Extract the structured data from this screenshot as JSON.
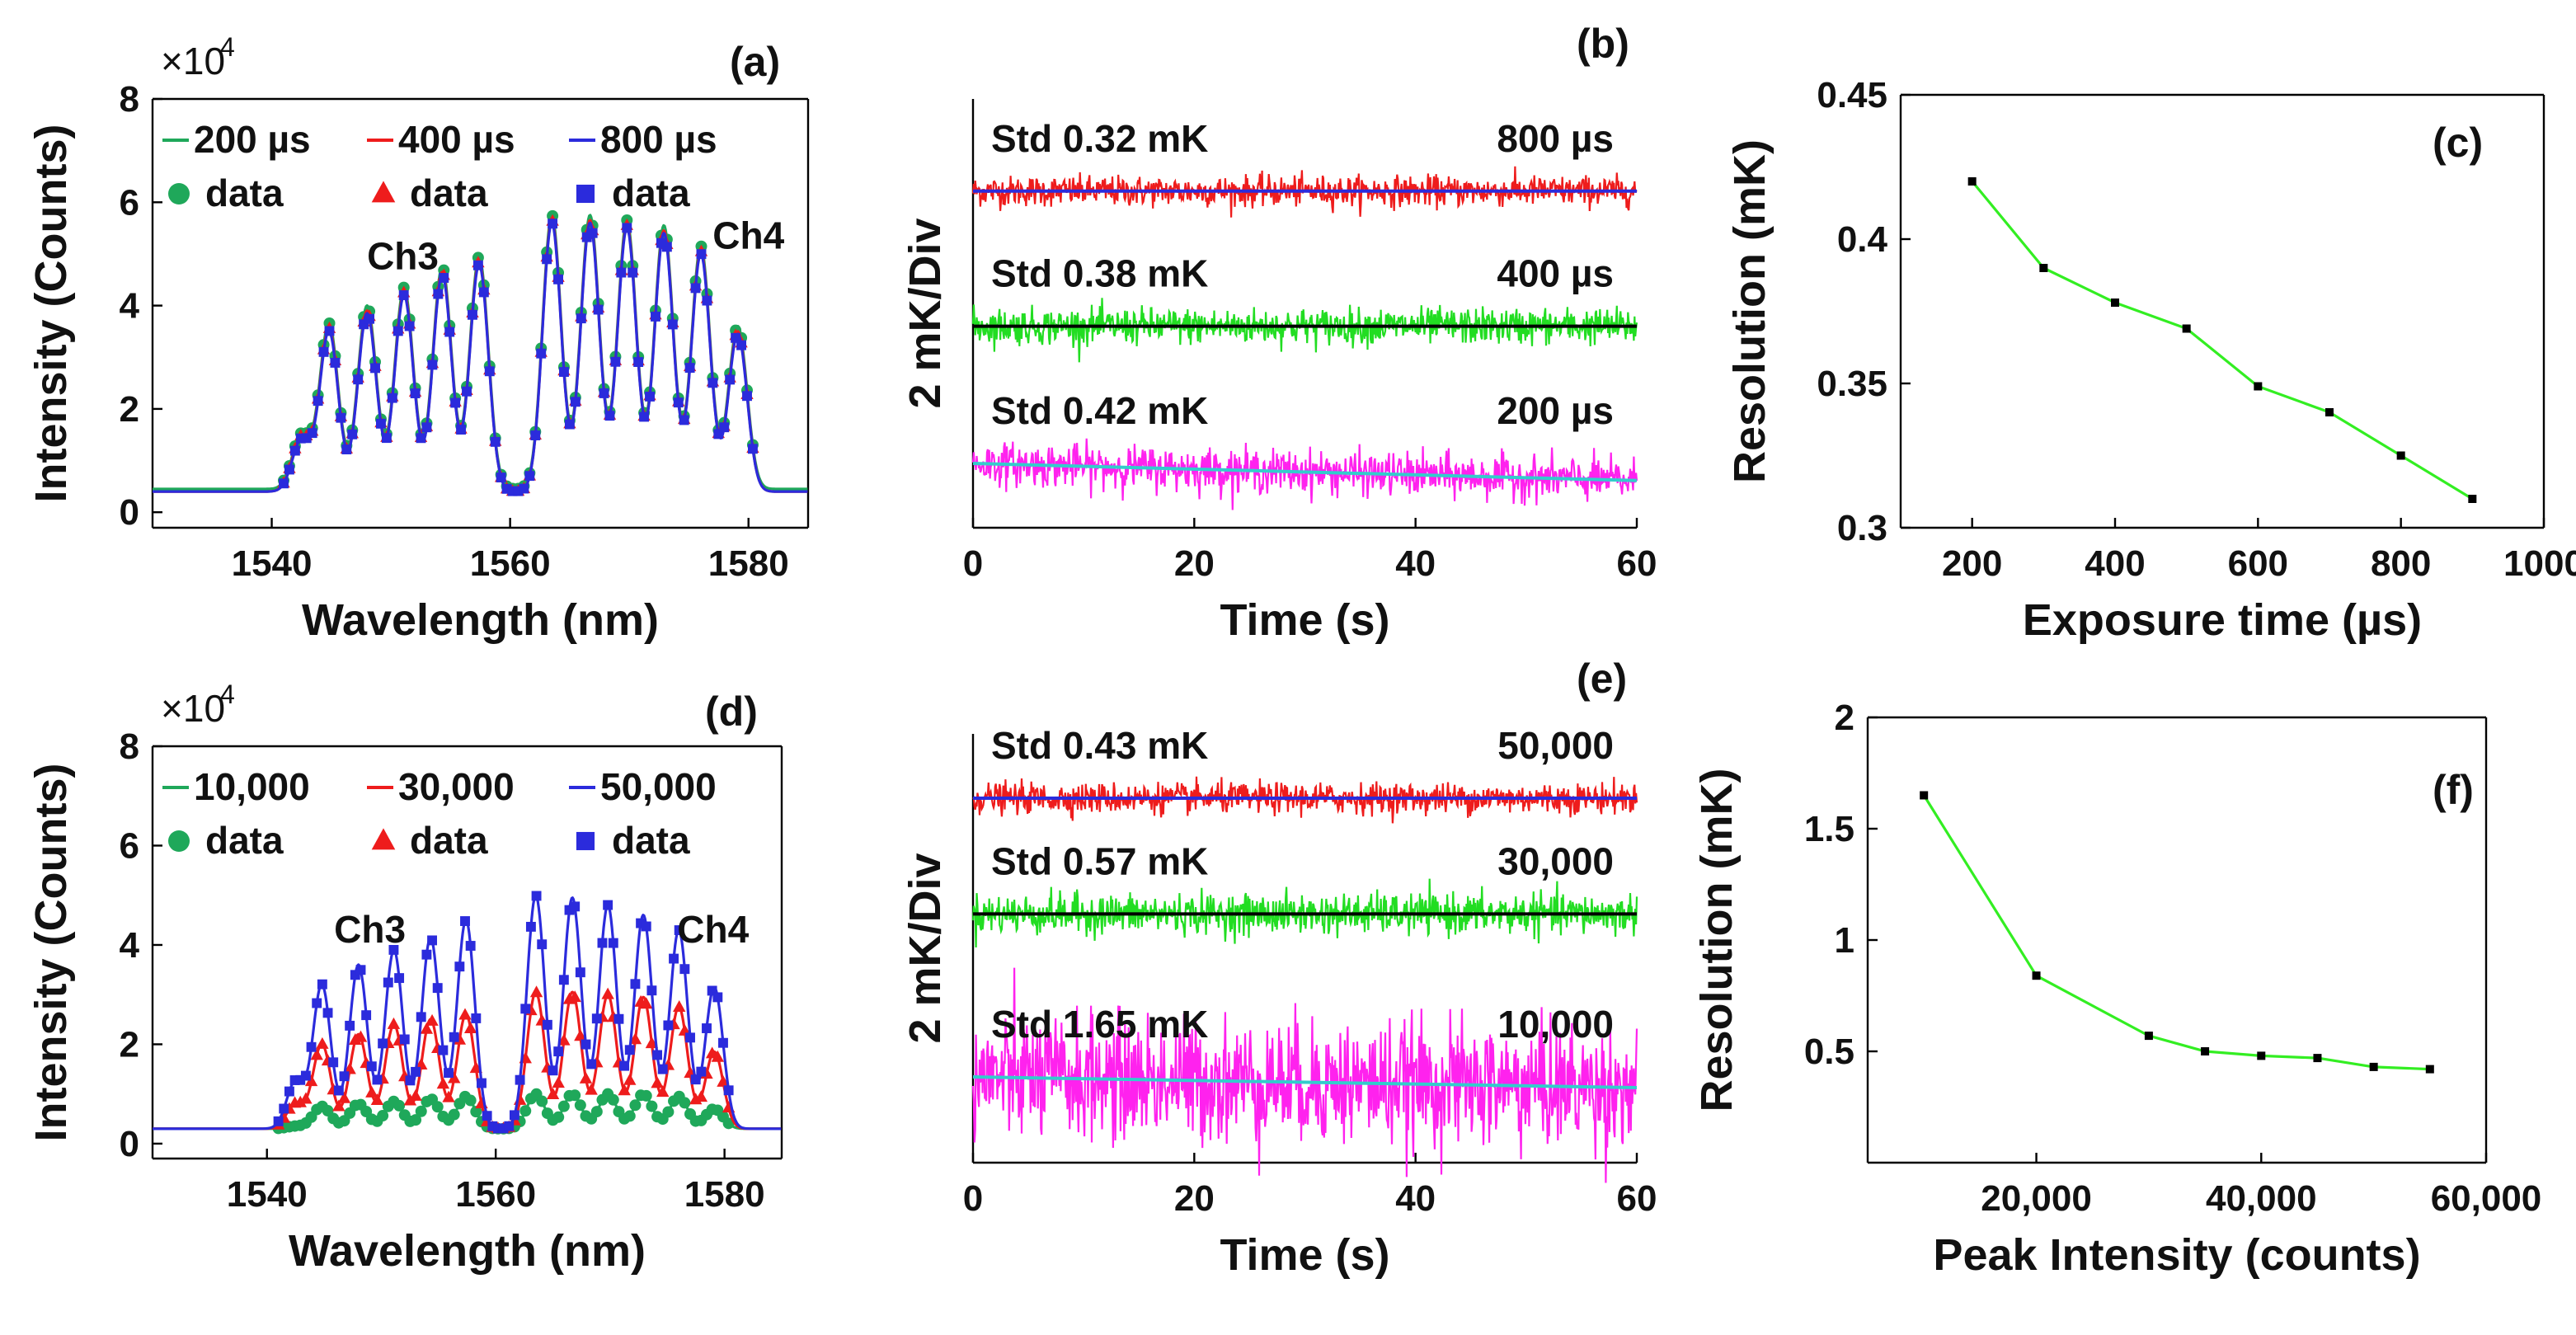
{
  "chart_data": [
    {
      "id": "a",
      "type": "line",
      "panel_label": "(a)",
      "xlabel": "Wavelength (nm)",
      "ylabel": "Intensity (Counts)",
      "multiplier_base": "×10",
      "multiplier_exp": "4",
      "xlim": [
        1530,
        1585
      ],
      "ylim": [
        -0.3,
        8
      ],
      "xticks": [
        1540,
        1560,
        1580
      ],
      "yticks": [
        0,
        2,
        4,
        6,
        8
      ],
      "channel_labels": [
        {
          "text": "Ch3",
          "x": 1551,
          "y": 4.7
        },
        {
          "text": "Ch4",
          "x": 1580,
          "y": 5.1
        }
      ],
      "legend": [
        {
          "label": "200 µs",
          "data_label": "data",
          "color": "#1fa85a",
          "marker": "circle"
        },
        {
          "label": "400 µs",
          "data_label": "data",
          "color": "#ee1c1c",
          "marker": "triangle"
        },
        {
          "label": "800 µs",
          "data_label": "data",
          "color": "#2b2bdc",
          "marker": "square"
        }
      ],
      "series": [
        {
          "name": "200 µs",
          "color": "#1fa85a",
          "marker": "circle",
          "baseline": 0.45,
          "peaks": [
            [
              1542.5,
              1.5
            ],
            [
              1544.8,
              3.65
            ],
            [
              1548.0,
              4.0
            ],
            [
              1551.1,
              4.35
            ],
            [
              1554.3,
              4.75
            ],
            [
              1557.4,
              4.95
            ],
            [
              1563.5,
              5.75
            ],
            [
              1566.7,
              5.75
            ],
            [
              1569.8,
              5.65
            ],
            [
              1572.9,
              5.55
            ],
            [
              1576.0,
              5.15
            ],
            [
              1579.1,
              3.6
            ]
          ]
        },
        {
          "name": "400 µs",
          "color": "#ee1c1c",
          "marker": "triangle",
          "baseline": 0.4,
          "peaks": [
            [
              1542.5,
              1.45
            ],
            [
              1544.8,
              3.55
            ],
            [
              1548.0,
              3.9
            ],
            [
              1551.1,
              4.25
            ],
            [
              1554.3,
              4.65
            ],
            [
              1557.4,
              4.85
            ],
            [
              1563.5,
              5.65
            ],
            [
              1566.7,
              5.65
            ],
            [
              1569.8,
              5.55
            ],
            [
              1572.9,
              5.45
            ],
            [
              1576.0,
              5.05
            ],
            [
              1579.1,
              3.5
            ]
          ]
        },
        {
          "name": "800 µs",
          "color": "#2b2bdc",
          "marker": "square",
          "baseline": 0.4,
          "peaks": [
            [
              1542.5,
              1.4
            ],
            [
              1544.8,
              3.5
            ],
            [
              1548.0,
              3.85
            ],
            [
              1551.1,
              4.2
            ],
            [
              1554.3,
              4.6
            ],
            [
              1557.4,
              4.8
            ],
            [
              1563.5,
              5.6
            ],
            [
              1566.7,
              5.6
            ],
            [
              1569.8,
              5.5
            ],
            [
              1572.9,
              5.4
            ],
            [
              1576.0,
              5.0
            ],
            [
              1579.1,
              3.45
            ]
          ]
        }
      ]
    },
    {
      "id": "b",
      "type": "line",
      "panel_label": "(b)",
      "xlabel": "Time (s)",
      "ylabel": "2 mK/Div",
      "xlim": [
        0,
        60
      ],
      "ylim": [
        0,
        10
      ],
      "xticks": [
        0,
        20,
        40,
        60
      ],
      "traces": [
        {
          "std_label": "Std 0.32 mK",
          "tag": "800 µs",
          "noise_color": "#ee1c1c",
          "fit_color": "#2b2bdc",
          "center": 7.85,
          "amplitude": 0.32,
          "slope": 0.0
        },
        {
          "std_label": "Std 0.38 mK",
          "tag": "400 µs",
          "noise_color": "#22dd22",
          "fit_color": "#000000",
          "center": 4.7,
          "amplitude": 0.38,
          "slope": 0.0
        },
        {
          "std_label": "Std 0.42 mK",
          "tag": "200 µs",
          "noise_color": "#ff22ee",
          "fit_color": "#33cccc",
          "center": 1.5,
          "amplitude": 0.45,
          "slope": -0.4
        }
      ]
    },
    {
      "id": "c",
      "type": "line",
      "panel_label": "(c)",
      "xlabel": "Exposure time (µs)",
      "ylabel": "Resolution (mK)",
      "xlim": [
        100,
        1000
      ],
      "ylim": [
        0.3,
        0.45
      ],
      "xticks": [
        200,
        400,
        600,
        800,
        1000
      ],
      "yticks": [
        0.3,
        0.35,
        0.4,
        0.45
      ],
      "ytick_labels": [
        "0.3",
        "0.35",
        "0.4",
        "0.45"
      ],
      "line_color": "#33ee22",
      "x": [
        200,
        300,
        400,
        500,
        600,
        700,
        800,
        900
      ],
      "y": [
        0.42,
        0.39,
        0.378,
        0.369,
        0.349,
        0.34,
        0.325,
        0.31
      ]
    },
    {
      "id": "d",
      "type": "line",
      "panel_label": "(d)",
      "xlabel": "Wavelength (nm)",
      "ylabel": "Intensity (Counts)",
      "multiplier_base": "×10",
      "multiplier_exp": "4",
      "xlim": [
        1530,
        1585
      ],
      "ylim": [
        -0.3,
        8
      ],
      "xticks": [
        1540,
        1560,
        1580
      ],
      "yticks": [
        0,
        2,
        4,
        6,
        8
      ],
      "channel_labels": [
        {
          "text": "Ch3",
          "x": 1549,
          "y": 4.05
        },
        {
          "text": "Ch4",
          "x": 1579,
          "y": 4.05
        }
      ],
      "legend": [
        {
          "label": "10,000",
          "data_label": "data",
          "color": "#1fa85a",
          "marker": "circle"
        },
        {
          "label": "30,000",
          "data_label": "data",
          "color": "#ee1c1c",
          "marker": "triangle"
        },
        {
          "label": "50,000",
          "data_label": "data",
          "color": "#2b2bdc",
          "marker": "square"
        }
      ],
      "series": [
        {
          "name": "10,000",
          "color": "#1fa85a",
          "marker": "circle",
          "baseline": 0.3,
          "peaks": [
            [
              1542.5,
              0.35
            ],
            [
              1544.8,
              0.75
            ],
            [
              1548.0,
              0.8
            ],
            [
              1551.1,
              0.85
            ],
            [
              1554.3,
              0.9
            ],
            [
              1557.4,
              0.95
            ],
            [
              1563.5,
              1.0
            ],
            [
              1566.7,
              1.0
            ],
            [
              1569.8,
              1.0
            ],
            [
              1572.9,
              1.0
            ],
            [
              1576.0,
              0.95
            ],
            [
              1579.1,
              0.7
            ]
          ]
        },
        {
          "name": "30,000",
          "color": "#ee1c1c",
          "marker": "triangle",
          "baseline": 0.3,
          "peaks": [
            [
              1542.5,
              0.8
            ],
            [
              1544.8,
              2.0
            ],
            [
              1548.0,
              2.2
            ],
            [
              1551.1,
              2.4
            ],
            [
              1554.3,
              2.5
            ],
            [
              1557.4,
              2.6
            ],
            [
              1563.5,
              3.05
            ],
            [
              1566.7,
              3.05
            ],
            [
              1569.8,
              3.0
            ],
            [
              1572.9,
              2.95
            ],
            [
              1576.0,
              2.75
            ],
            [
              1579.1,
              1.85
            ]
          ]
        },
        {
          "name": "50,000",
          "color": "#2b2bdc",
          "marker": "square",
          "baseline": 0.3,
          "peaks": [
            [
              1542.5,
              1.25
            ],
            [
              1544.8,
              3.2
            ],
            [
              1548.0,
              3.6
            ],
            [
              1551.1,
              3.9
            ],
            [
              1554.3,
              4.15
            ],
            [
              1557.4,
              4.5
            ],
            [
              1563.5,
              5.0
            ],
            [
              1566.7,
              4.95
            ],
            [
              1569.8,
              4.8
            ],
            [
              1572.9,
              4.6
            ],
            [
              1576.0,
              4.3
            ],
            [
              1579.1,
              3.15
            ]
          ]
        }
      ]
    },
    {
      "id": "e",
      "type": "line",
      "panel_label": "(e)",
      "xlabel": "Time (s)",
      "ylabel": "2 mK/Div",
      "xlim": [
        0,
        60
      ],
      "ylim": [
        0,
        10
      ],
      "xticks": [
        0,
        20,
        40,
        60
      ],
      "traces": [
        {
          "std_label": "Std 0.43 mK",
          "tag": "50,000",
          "noise_color": "#ee1c1c",
          "fit_color": "#2b2bdc",
          "center": 8.5,
          "amplitude": 0.32,
          "slope": 0.0
        },
        {
          "std_label": "Std 0.57 mK",
          "tag": "30,000",
          "noise_color": "#22dd22",
          "fit_color": "#000000",
          "center": 5.8,
          "amplitude": 0.42,
          "slope": 0.0
        },
        {
          "std_label": "Std 1.65 mK",
          "tag": "10,000",
          "noise_color": "#ff22ee",
          "fit_color": "#33cccc",
          "center": 2.0,
          "amplitude": 1.3,
          "slope": -0.25
        }
      ]
    },
    {
      "id": "f",
      "type": "line",
      "panel_label": "(f)",
      "xlabel": "Peak Intensity (counts)",
      "ylabel": "Resolution (mK)",
      "xlim": [
        5000,
        60000
      ],
      "ylim": [
        0,
        2
      ],
      "xticks": [
        20000,
        40000,
        60000
      ],
      "xtick_labels": [
        "20,000",
        "40,000",
        "60,000"
      ],
      "yticks": [
        0.5,
        1,
        1.5,
        2
      ],
      "ytick_labels": [
        "0.5",
        "1",
        "1.5",
        "2"
      ],
      "line_color": "#33ee22",
      "x": [
        10000,
        20000,
        30000,
        35000,
        40000,
        45000,
        50000,
        55000
      ],
      "y": [
        1.65,
        0.84,
        0.57,
        0.5,
        0.48,
        0.47,
        0.43,
        0.42
      ]
    }
  ]
}
